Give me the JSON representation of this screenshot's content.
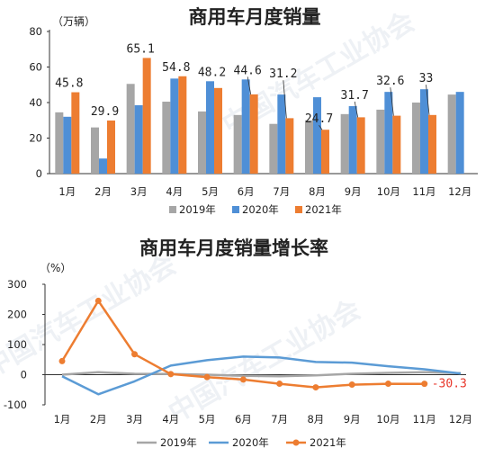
{
  "colors": {
    "s2019_bar": "#a6a6a6",
    "s2020_bar": "#4f8fd6",
    "s2021_bar": "#ed7d31",
    "s2019_line": "#a6a6a6",
    "s2020_line": "#5b9bd5",
    "s2021_line": "#ed7d31",
    "accent_red": "#e8372b"
  },
  "watermark": "中国汽车工业协会",
  "chart_data": [
    {
      "type": "bar",
      "title": "商用车月度销量",
      "unit_label": "（万辆）",
      "categories": [
        "1月",
        "2月",
        "3月",
        "4月",
        "5月",
        "6月",
        "7月",
        "8月",
        "9月",
        "10月",
        "11月",
        "12月"
      ],
      "ylim": [
        0,
        80
      ],
      "yticks": [
        "0",
        "20",
        "40",
        "60",
        "80"
      ],
      "series": [
        {
          "name": "2019年",
          "values": [
            34.5,
            26,
            50.5,
            40.5,
            35,
            33,
            28,
            30,
            33.5,
            36,
            40,
            44.5
          ]
        },
        {
          "name": "2020年",
          "values": [
            32,
            8.5,
            38.5,
            53.5,
            52,
            53,
            44.5,
            43,
            38,
            46,
            47.5,
            46
          ]
        },
        {
          "name": "2021年",
          "values": [
            45.8,
            29.9,
            65.1,
            54.8,
            48.2,
            44.6,
            31.2,
            24.7,
            31.7,
            32.6,
            33,
            null
          ]
        }
      ],
      "data_labels": [
        "45.8",
        "29.9",
        "65.1",
        "54.8",
        "48.2",
        "44.6",
        "31.2",
        "24.7",
        "31.7",
        "32.6",
        "33"
      ],
      "legend": [
        "2019年",
        "2020年",
        "2021年"
      ],
      "legend_position": "bottom"
    },
    {
      "type": "line",
      "title": "商用车月度销量增长率",
      "unit_label": "（%）",
      "categories": [
        "1月",
        "2月",
        "3月",
        "4月",
        "5月",
        "6月",
        "7月",
        "8月",
        "9月",
        "10月",
        "11月",
        "12月"
      ],
      "ylim": [
        -100,
        300
      ],
      "yticks": [
        "-100",
        "0",
        "100",
        "200",
        "300"
      ],
      "series": [
        {
          "name": "2019年",
          "values": [
            0,
            8,
            3,
            2,
            0,
            -4,
            -5,
            -2,
            3,
            6,
            8,
            5
          ]
        },
        {
          "name": "2020年",
          "values": [
            -5,
            -65,
            -22,
            30,
            48,
            60,
            57,
            42,
            40,
            28,
            18,
            4
          ]
        },
        {
          "name": "2021年",
          "values": [
            45,
            245,
            68,
            2,
            -8,
            -16,
            -30,
            -42,
            -33,
            -30,
            -30.3,
            null
          ]
        }
      ],
      "data_labels": [
        "-30.3"
      ],
      "legend": [
        "2019年",
        "2020年",
        "2021年"
      ],
      "legend_position": "bottom"
    }
  ]
}
